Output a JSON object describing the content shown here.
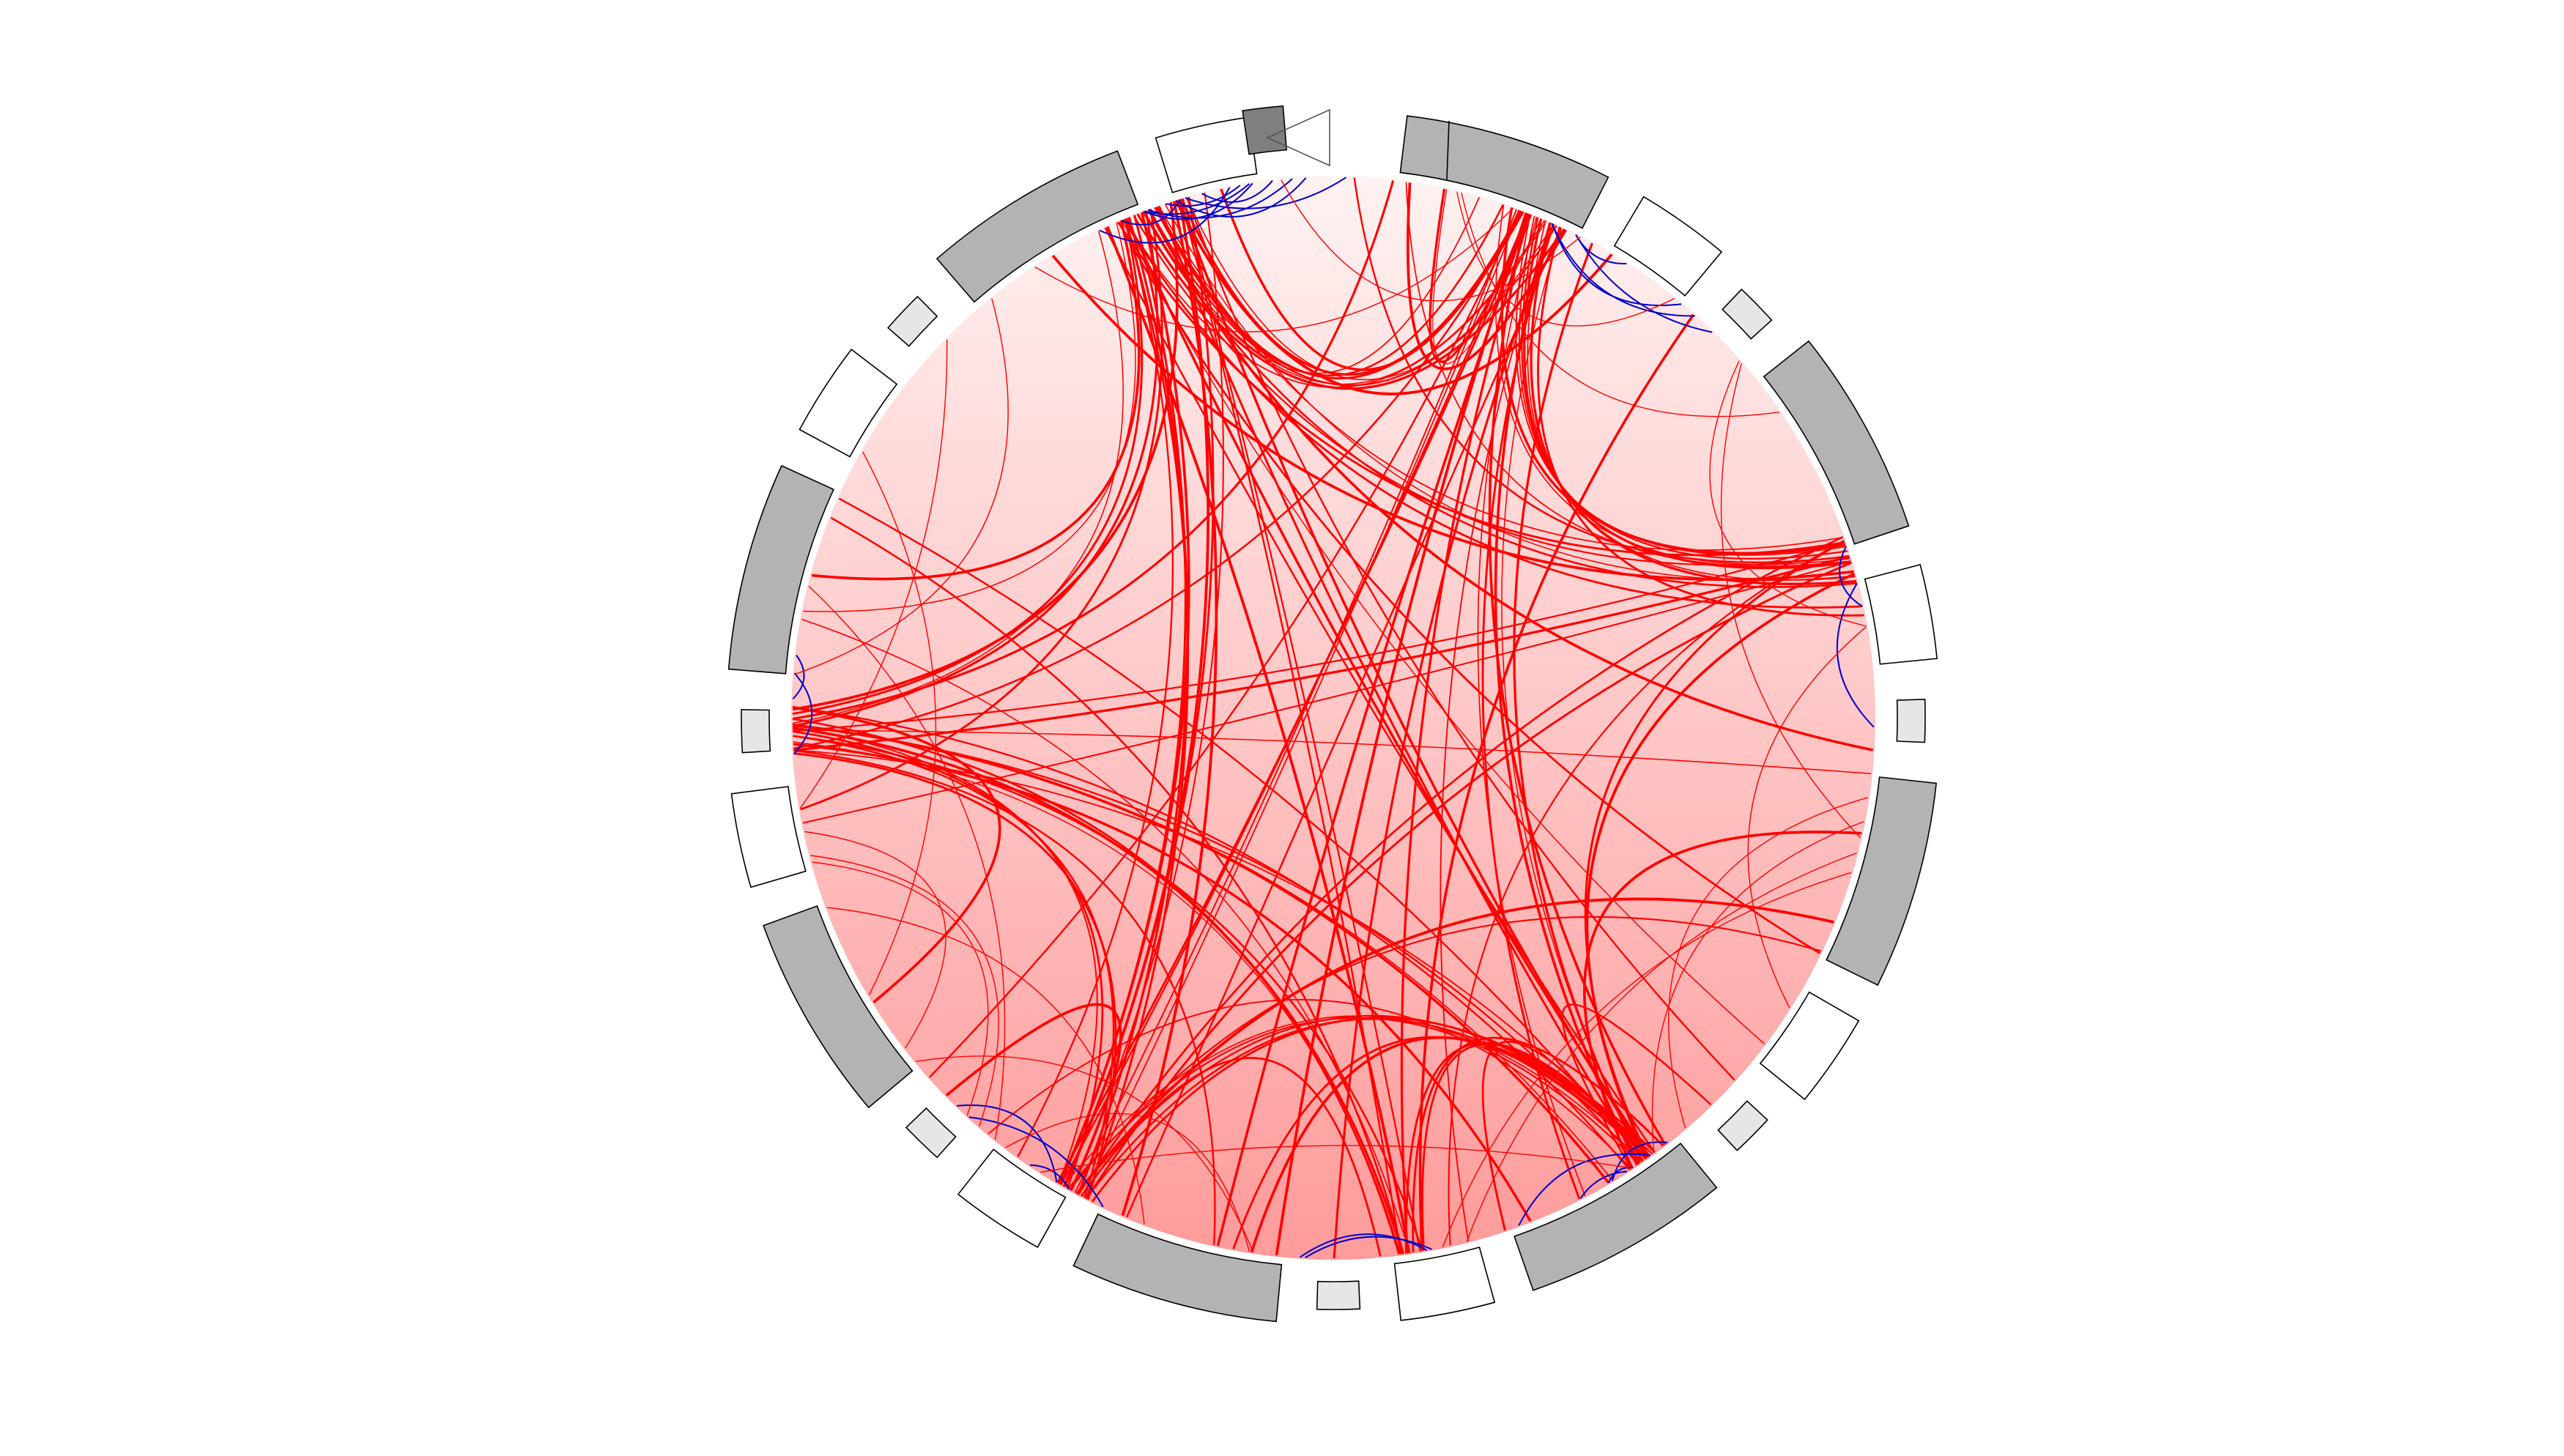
{
  "diagram": {
    "type": "circular-chord-diagram",
    "colors": {
      "background": "#ffffff",
      "disc_top": "#fff2f2",
      "disc_bottom": "#ff9b9b",
      "inter_link": "#ff0000",
      "intra_link": "#0000cc",
      "band_dark": "#7f7f7f",
      "band_gray": "#b3b3b3",
      "band_light": "#e6e6e6",
      "band_white": "#ffffff",
      "outline": "#000000"
    },
    "ideogram": {
      "start_angle_deg": 7,
      "end_angle_deg": 352,
      "pattern": [
        "gray",
        "white",
        "light"
      ],
      "count": 23
    },
    "markers": {
      "triangle": "hollow-triangle",
      "dark_block": "dark-square"
    },
    "links": {
      "inter_count": 140,
      "intra_count": 26,
      "hubs_deg": [
        337,
        339,
        341,
        343,
        20,
        22,
        24,
        72,
        74,
        268,
        270,
        210,
        208,
        144,
        146,
        172
      ]
    }
  }
}
